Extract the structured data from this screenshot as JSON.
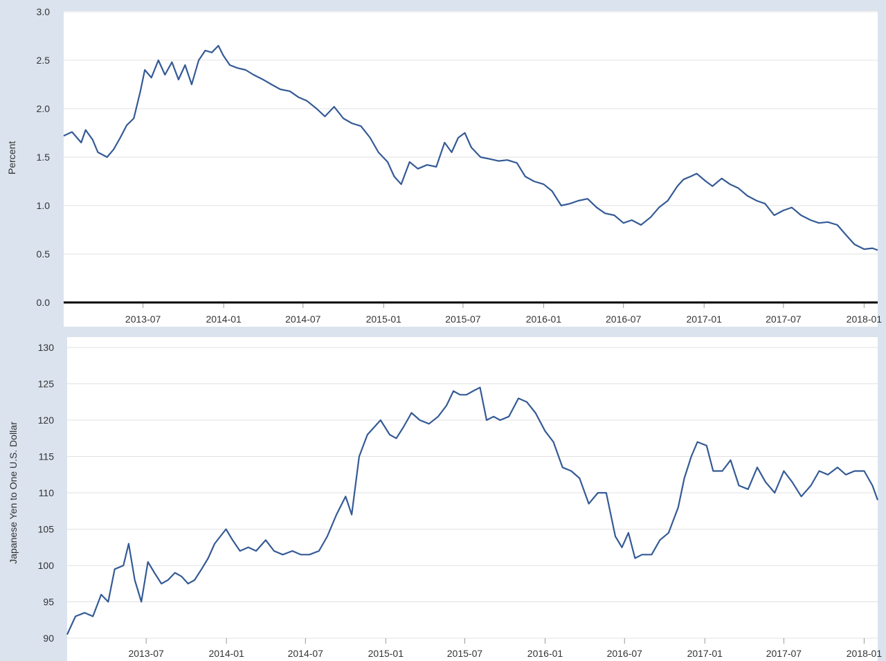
{
  "colors": {
    "page_background": "#dbe3ee",
    "plot_background": "#ffffff",
    "series_line": "#345a95",
    "grid": "#e1e1e1",
    "zero_line": "#000000"
  },
  "chart_data": [
    {
      "type": "line",
      "ylabel": "Percent",
      "ylim": [
        0,
        3.0
      ],
      "yticks": [
        0.0,
        0.5,
        1.0,
        1.5,
        2.0,
        2.5,
        3.0
      ],
      "ytick_labels": [
        "0.0",
        "0.5",
        "1.0",
        "1.5",
        "2.0",
        "2.5",
        "3.0"
      ],
      "xlim": [
        "2013-01-01",
        "2018-02-01"
      ],
      "xticks": [
        "2013-07",
        "2014-01",
        "2014-07",
        "2015-01",
        "2015-07",
        "2016-01",
        "2016-07",
        "2017-01",
        "2017-07",
        "2018-01"
      ],
      "grid": true,
      "legend": "none",
      "zero_line": true,
      "series": [
        {
          "x": [
            "2013-01-01",
            "2013-01-20",
            "2013-02-10",
            "2013-02-20",
            "2013-03-08",
            "2013-03-20",
            "2013-04-10",
            "2013-04-25",
            "2013-05-10",
            "2013-05-25",
            "2013-06-10",
            "2013-06-25",
            "2013-07-05",
            "2013-07-20",
            "2013-08-05",
            "2013-08-20",
            "2013-09-05",
            "2013-09-20",
            "2013-10-05",
            "2013-10-20",
            "2013-11-05",
            "2013-11-20",
            "2013-12-05",
            "2013-12-20",
            "2013-12-31",
            "2014-01-15",
            "2014-02-01",
            "2014-02-20",
            "2014-03-10",
            "2014-04-01",
            "2014-04-20",
            "2014-05-10",
            "2014-06-01",
            "2014-06-20",
            "2014-07-10",
            "2014-08-01",
            "2014-08-20",
            "2014-09-10",
            "2014-10-01",
            "2014-10-20",
            "2014-11-10",
            "2014-12-01",
            "2014-12-20",
            "2015-01-10",
            "2015-01-25",
            "2015-02-10",
            "2015-03-01",
            "2015-03-20",
            "2015-04-10",
            "2015-05-01",
            "2015-05-20",
            "2015-06-05",
            "2015-06-20",
            "2015-07-05",
            "2015-07-20",
            "2015-08-10",
            "2015-09-01",
            "2015-09-20",
            "2015-10-10",
            "2015-11-01",
            "2015-11-20",
            "2015-12-10",
            "2016-01-01",
            "2016-01-20",
            "2016-02-10",
            "2016-03-01",
            "2016-03-20",
            "2016-04-10",
            "2016-05-01",
            "2016-05-20",
            "2016-06-10",
            "2016-07-01",
            "2016-07-20",
            "2016-08-10",
            "2016-09-01",
            "2016-09-20",
            "2016-10-10",
            "2016-11-01",
            "2016-11-15",
            "2016-12-01",
            "2016-12-15",
            "2017-01-05",
            "2017-01-20",
            "2017-02-10",
            "2017-03-01",
            "2017-03-20",
            "2017-04-10",
            "2017-05-01",
            "2017-05-20",
            "2017-06-10",
            "2017-07-01",
            "2017-07-20",
            "2017-08-10",
            "2017-09-01",
            "2017-09-20",
            "2017-10-10",
            "2017-11-01",
            "2017-11-20",
            "2017-12-10",
            "2018-01-01",
            "2018-01-20",
            "2018-02-01"
          ],
          "y": [
            1.72,
            1.76,
            1.65,
            1.78,
            1.68,
            1.55,
            1.5,
            1.58,
            1.7,
            1.83,
            1.9,
            2.18,
            2.4,
            2.32,
            2.5,
            2.35,
            2.48,
            2.3,
            2.45,
            2.25,
            2.5,
            2.6,
            2.58,
            2.65,
            2.55,
            2.45,
            2.42,
            2.4,
            2.35,
            2.3,
            2.25,
            2.2,
            2.18,
            2.12,
            2.08,
            2.0,
            1.92,
            2.02,
            1.9,
            1.85,
            1.82,
            1.7,
            1.55,
            1.45,
            1.3,
            1.22,
            1.45,
            1.38,
            1.42,
            1.4,
            1.65,
            1.55,
            1.7,
            1.75,
            1.6,
            1.5,
            1.48,
            1.46,
            1.47,
            1.44,
            1.3,
            1.25,
            1.22,
            1.15,
            1.0,
            1.02,
            1.05,
            1.07,
            0.98,
            0.92,
            0.9,
            0.82,
            0.85,
            0.8,
            0.88,
            0.98,
            1.05,
            1.2,
            1.27,
            1.3,
            1.33,
            1.25,
            1.2,
            1.28,
            1.22,
            1.18,
            1.1,
            1.05,
            1.02,
            0.9,
            0.95,
            0.98,
            0.9,
            0.85,
            0.82,
            0.83,
            0.8,
            0.7,
            0.6,
            0.55,
            0.56,
            0.54
          ]
        }
      ]
    },
    {
      "type": "line",
      "ylabel": "Japanese Yen to One U.S. Dollar",
      "ylim": [
        90,
        130
      ],
      "yticks": [
        90,
        95,
        100,
        105,
        110,
        115,
        120,
        125,
        130
      ],
      "ytick_labels": [
        "90",
        "95",
        "100",
        "105",
        "110",
        "115",
        "120",
        "125",
        "130"
      ],
      "xlim": [
        "2013-01-01",
        "2018-02-01"
      ],
      "xticks": [
        "2013-07",
        "2014-01",
        "2014-07",
        "2015-01",
        "2015-07",
        "2016-01",
        "2016-07",
        "2017-01",
        "2017-07",
        "2018-01"
      ],
      "grid": true,
      "legend": "none",
      "series": [
        {
          "x": [
            "2013-01-01",
            "2013-01-20",
            "2013-02-10",
            "2013-03-01",
            "2013-03-20",
            "2013-04-05",
            "2013-04-20",
            "2013-05-10",
            "2013-05-22",
            "2013-06-05",
            "2013-06-20",
            "2013-07-05",
            "2013-07-20",
            "2013-08-05",
            "2013-08-20",
            "2013-09-05",
            "2013-09-20",
            "2013-10-05",
            "2013-10-20",
            "2013-11-05",
            "2013-11-20",
            "2013-12-05",
            "2013-12-31",
            "2014-01-15",
            "2014-02-01",
            "2014-02-20",
            "2014-03-10",
            "2014-04-01",
            "2014-04-20",
            "2014-05-10",
            "2014-06-01",
            "2014-06-20",
            "2014-07-10",
            "2014-08-01",
            "2014-08-20",
            "2014-09-10",
            "2014-10-01",
            "2014-10-15",
            "2014-11-01",
            "2014-11-20",
            "2014-12-05",
            "2014-12-20",
            "2015-01-10",
            "2015-01-25",
            "2015-02-10",
            "2015-03-01",
            "2015-03-20",
            "2015-04-10",
            "2015-05-01",
            "2015-05-20",
            "2015-06-05",
            "2015-06-20",
            "2015-07-05",
            "2015-07-20",
            "2015-08-05",
            "2015-08-20",
            "2015-09-05",
            "2015-09-20",
            "2015-10-10",
            "2015-11-01",
            "2015-11-20",
            "2015-12-10",
            "2016-01-01",
            "2016-01-20",
            "2016-02-10",
            "2016-03-01",
            "2016-03-20",
            "2016-04-10",
            "2016-05-01",
            "2016-05-20",
            "2016-06-10",
            "2016-06-25",
            "2016-07-10",
            "2016-07-25",
            "2016-08-10",
            "2016-09-01",
            "2016-09-20",
            "2016-10-10",
            "2016-11-01",
            "2016-11-15",
            "2016-12-01",
            "2016-12-15",
            "2017-01-05",
            "2017-01-20",
            "2017-02-10",
            "2017-03-01",
            "2017-03-20",
            "2017-04-10",
            "2017-05-01",
            "2017-05-20",
            "2017-06-10",
            "2017-07-01",
            "2017-07-20",
            "2017-08-10",
            "2017-09-01",
            "2017-09-20",
            "2017-10-10",
            "2017-11-01",
            "2017-11-20",
            "2017-12-10",
            "2018-01-01",
            "2018-01-20",
            "2018-02-01"
          ],
          "y": [
            90.5,
            93.0,
            93.5,
            93.0,
            96.0,
            95.0,
            99.5,
            100.0,
            103.0,
            98.0,
            95.0,
            100.5,
            99.0,
            97.5,
            98.0,
            99.0,
            98.5,
            97.5,
            98.0,
            99.5,
            101.0,
            103.0,
            105.0,
            103.5,
            102.0,
            102.5,
            102.0,
            103.5,
            102.0,
            101.5,
            102.0,
            101.5,
            101.5,
            102.0,
            104.0,
            107.0,
            109.5,
            107.0,
            115.0,
            118.0,
            119.0,
            120.0,
            118.0,
            117.5,
            119.0,
            121.0,
            120.0,
            119.5,
            120.5,
            122.0,
            124.0,
            123.5,
            123.5,
            124.0,
            124.5,
            120.0,
            120.5,
            120.0,
            120.5,
            123.0,
            122.5,
            121.0,
            118.5,
            117.0,
            113.5,
            113.0,
            112.0,
            108.5,
            110.0,
            110.0,
            104.0,
            102.5,
            104.5,
            101.0,
            101.5,
            101.5,
            103.5,
            104.5,
            108.0,
            112.0,
            115.0,
            117.0,
            116.5,
            113.0,
            113.0,
            114.5,
            111.0,
            110.5,
            113.5,
            111.5,
            110.0,
            113.0,
            111.5,
            109.5,
            111.0,
            113.0,
            112.5,
            113.5,
            112.5,
            113.0,
            113.0,
            111.0,
            109.0
          ]
        }
      ]
    }
  ]
}
